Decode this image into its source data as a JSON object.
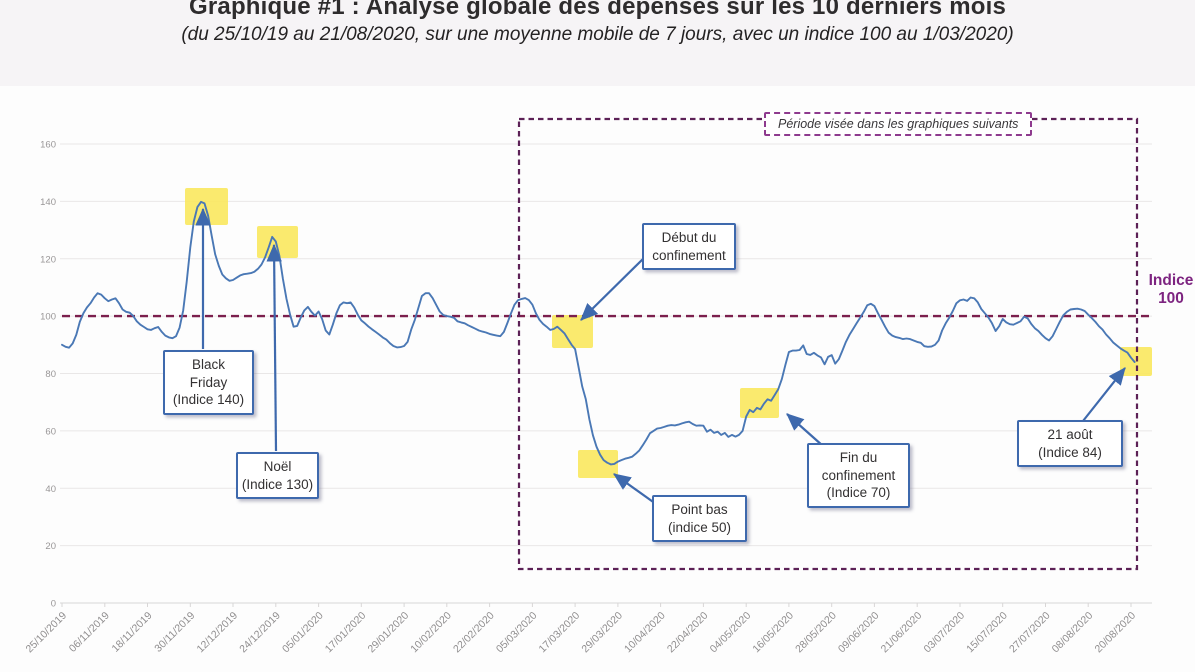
{
  "header": {
    "title": "Graphique #1 : Analyse globale des dépenses sur les 10 derniers mois",
    "subtitle": "(du 25/10/19 au 21/08/2020, sur une moyenne mobile de 7 jours, avec un indice 100 au 1/03/2020)"
  },
  "annotations": {
    "black_friday": [
      "Black",
      "Friday",
      "(Indice 140)"
    ],
    "noel": [
      "Noël",
      "(Indice 130)"
    ],
    "debut_confinement": [
      "Début du",
      "confinement"
    ],
    "point_bas": [
      "Point bas",
      "(indice 50)"
    ],
    "fin_confinement": [
      "Fin du",
      "confinement",
      "(Indice 70)"
    ],
    "aout21": [
      "21 août",
      "(Indice 84)"
    ],
    "indice_100": [
      "Indice",
      "100"
    ],
    "periode": "Période visée dans les graphiques suivants"
  },
  "colors": {
    "line": "#4a78b5",
    "reference_line": "#7b1f4d",
    "period_border": "#5c2156",
    "indice_label": "#7d2480",
    "highlight": "#fae862",
    "annotation_border": "#3e69ad",
    "axis_text": "#999697",
    "gridline": "#e9e7e7",
    "axis_line": "#d8d6d6"
  },
  "chart_data": {
    "type": "line",
    "title": "Graphique #1 : Analyse globale des dépenses sur les 10 derniers mois",
    "subtitle": "(du 25/10/19 au 21/08/2020, sur une moyenne mobile de 7 jours, avec un indice 100 au 1/03/2020)",
    "x_axis": {
      "start_date": "25/10/2019",
      "end_date": "21/08/2020",
      "tick_interval_days": 12,
      "tick_labels": [
        "25/10/2019",
        "06/11/2019",
        "18/11/2019",
        "30/11/2019",
        "12/12/2019",
        "24/12/2019",
        "05/01/2020",
        "17/01/2020",
        "29/01/2020",
        "10/02/2020",
        "22/02/2020",
        "05/03/2020",
        "17/03/2020",
        "29/03/2020",
        "10/04/2020",
        "22/04/2020",
        "04/05/2020",
        "16/05/2020",
        "28/05/2020",
        "09/06/2020",
        "21/06/2020",
        "03/07/2020",
        "15/07/2020",
        "27/07/2020",
        "08/08/2020",
        "20/08/2020"
      ]
    },
    "y_axis": {
      "ylim": [
        0,
        160
      ],
      "ticks": [
        0,
        20,
        40,
        60,
        80,
        100,
        120,
        140,
        160
      ]
    },
    "grid": "horizontal",
    "reference_line": {
      "value": 100,
      "label": "Indice 100"
    },
    "period_box_label": "Période visée dans les graphiques suivants",
    "events": [
      {
        "label": "Black Friday",
        "indice": 140
      },
      {
        "label": "Noël",
        "indice": 130
      },
      {
        "label": "Début du confinement"
      },
      {
        "label": "Point bas",
        "indice": 50
      },
      {
        "label": "Fin du confinement",
        "indice": 70
      },
      {
        "label": "21 août",
        "indice": 84
      }
    ],
    "series": {
      "x_unit": "days_since_25/10/2019",
      "points": [
        [
          0,
          90
        ],
        [
          1,
          89.3
        ],
        [
          2,
          89
        ],
        [
          3,
          90.5
        ],
        [
          4,
          93.5
        ],
        [
          5,
          98
        ],
        [
          6,
          101
        ],
        [
          7,
          103
        ],
        [
          8,
          104.5
        ],
        [
          9,
          106.5
        ],
        [
          10,
          108
        ],
        [
          11,
          107.5
        ],
        [
          12,
          106.2
        ],
        [
          13,
          105.2
        ],
        [
          14,
          105.8
        ],
        [
          15,
          106.2
        ],
        [
          16,
          104.5
        ],
        [
          17,
          102.3
        ],
        [
          18,
          101.5
        ],
        [
          19,
          101.2
        ],
        [
          20,
          100
        ],
        [
          21,
          98.2
        ],
        [
          22,
          97
        ],
        [
          23,
          96.2
        ],
        [
          24,
          95.4
        ],
        [
          25,
          95.2
        ],
        [
          26,
          95.8
        ],
        [
          27,
          96.2
        ],
        [
          28,
          94.5
        ],
        [
          29,
          93.2
        ],
        [
          30,
          92.6
        ],
        [
          31,
          92.3
        ],
        [
          32,
          93
        ],
        [
          33,
          96
        ],
        [
          34,
          102
        ],
        [
          35,
          112
        ],
        [
          36,
          124
        ],
        [
          37,
          133
        ],
        [
          38,
          138
        ],
        [
          39,
          139.8
        ],
        [
          40,
          139.3
        ],
        [
          41,
          135
        ],
        [
          42,
          128
        ],
        [
          43,
          121.5
        ],
        [
          44,
          117.5
        ],
        [
          45,
          114.5
        ],
        [
          46,
          113.2
        ],
        [
          47,
          112.3
        ],
        [
          48,
          112.6
        ],
        [
          49,
          113.4
        ],
        [
          50,
          114.2
        ],
        [
          51,
          114.6
        ],
        [
          52,
          114.8
        ],
        [
          53,
          115
        ],
        [
          54,
          115.5
        ],
        [
          55,
          116.5
        ],
        [
          56,
          118
        ],
        [
          57,
          120.5
        ],
        [
          58,
          124
        ],
        [
          59,
          127.6
        ],
        [
          60,
          126
        ],
        [
          61,
          121
        ],
        [
          62,
          113
        ],
        [
          63,
          106
        ],
        [
          64,
          100.5
        ],
        [
          65,
          96.3
        ],
        [
          66,
          96.6
        ],
        [
          67,
          99.5
        ],
        [
          68,
          102
        ],
        [
          69,
          103.2
        ],
        [
          70,
          101.5
        ],
        [
          71,
          100.2
        ],
        [
          72,
          101.6
        ],
        [
          73,
          99
        ],
        [
          74,
          95
        ],
        [
          75,
          93.6
        ],
        [
          76,
          97
        ],
        [
          77,
          101
        ],
        [
          78,
          103.8
        ],
        [
          79,
          104.8
        ],
        [
          80,
          104.5
        ],
        [
          81,
          104.8
        ],
        [
          82,
          103
        ],
        [
          83,
          100.5
        ],
        [
          84,
          98.5
        ],
        [
          85,
          97.5
        ],
        [
          86,
          96.4
        ],
        [
          87,
          95.4
        ],
        [
          88,
          94.5
        ],
        [
          89,
          93.6
        ],
        [
          90,
          92.6
        ],
        [
          91,
          91.8
        ],
        [
          92,
          90.6
        ],
        [
          93,
          89.6
        ],
        [
          94,
          89.1
        ],
        [
          95,
          89.2
        ],
        [
          96,
          89.6
        ],
        [
          97,
          91
        ],
        [
          98,
          95.3
        ],
        [
          99,
          98.7
        ],
        [
          100,
          102.8
        ],
        [
          101,
          107
        ],
        [
          102,
          108
        ],
        [
          103,
          108
        ],
        [
          104,
          106.3
        ],
        [
          105,
          104
        ],
        [
          106,
          101.6
        ],
        [
          107,
          100.4
        ],
        [
          108,
          100
        ],
        [
          109,
          99.8
        ],
        [
          110,
          99.4
        ],
        [
          111,
          98.2
        ],
        [
          112,
          97.8
        ],
        [
          113,
          97.5
        ],
        [
          114,
          96.8
        ],
        [
          115,
          96.2
        ],
        [
          116,
          95.6
        ],
        [
          117,
          95
        ],
        [
          118,
          94.6
        ],
        [
          119,
          94.3
        ],
        [
          120,
          93.8
        ],
        [
          121,
          93.5
        ],
        [
          122,
          93.2
        ],
        [
          123,
          93
        ],
        [
          124,
          94.5
        ],
        [
          125,
          97.6
        ],
        [
          126,
          101
        ],
        [
          127,
          104
        ],
        [
          128,
          105.6
        ],
        [
          129,
          106
        ],
        [
          130,
          106.3
        ],
        [
          131,
          105.6
        ],
        [
          132,
          104
        ],
        [
          133,
          101
        ],
        [
          134,
          98.7
        ],
        [
          135,
          97.3
        ],
        [
          136,
          96.3
        ],
        [
          137,
          95.2
        ],
        [
          138,
          95.5
        ],
        [
          139,
          96.3
        ],
        [
          140,
          95.2
        ],
        [
          141,
          94
        ],
        [
          142,
          92
        ],
        [
          143,
          90
        ],
        [
          144,
          88.5
        ],
        [
          145,
          82
        ],
        [
          146,
          75.5
        ],
        [
          147,
          71
        ],
        [
          148,
          64
        ],
        [
          149,
          58.5
        ],
        [
          150,
          54.5
        ],
        [
          151,
          51.7
        ],
        [
          152,
          49.8
        ],
        [
          153,
          48.9
        ],
        [
          154,
          48.3
        ],
        [
          155,
          48.5
        ],
        [
          156,
          49.3
        ],
        [
          157,
          49.8
        ],
        [
          158,
          50.3
        ],
        [
          159,
          50.6
        ],
        [
          160,
          51
        ],
        [
          161,
          52
        ],
        [
          162,
          53.2
        ],
        [
          163,
          55
        ],
        [
          164,
          57
        ],
        [
          165,
          59.2
        ],
        [
          166,
          60
        ],
        [
          167,
          60.8
        ],
        [
          168,
          61
        ],
        [
          169,
          61.4
        ],
        [
          170,
          61.8
        ],
        [
          171,
          62
        ],
        [
          172,
          61.9
        ],
        [
          173,
          62.2
        ],
        [
          174,
          62.6
        ],
        [
          175,
          63
        ],
        [
          176,
          63.2
        ],
        [
          177,
          62.4
        ],
        [
          178,
          61.8
        ],
        [
          179,
          61.9
        ],
        [
          180,
          61.8
        ],
        [
          181,
          59.7
        ],
        [
          182,
          60.4
        ],
        [
          183,
          59.3
        ],
        [
          184,
          59.7
        ],
        [
          185,
          58.6
        ],
        [
          186,
          59.3
        ],
        [
          187,
          57.9
        ],
        [
          188,
          58.6
        ],
        [
          189,
          58
        ],
        [
          190,
          58.6
        ],
        [
          191,
          60
        ],
        [
          192,
          65
        ],
        [
          193,
          67.3
        ],
        [
          194,
          66.5
        ],
        [
          195,
          68
        ],
        [
          196,
          67.5
        ],
        [
          197,
          69.5
        ],
        [
          198,
          71
        ],
        [
          199,
          70.5
        ],
        [
          200,
          72.5
        ],
        [
          201,
          74.5
        ],
        [
          202,
          78
        ],
        [
          203,
          83
        ],
        [
          204,
          87.5
        ],
        [
          205,
          88
        ],
        [
          206,
          88
        ],
        [
          207,
          88.2
        ],
        [
          208,
          89.8
        ],
        [
          209,
          86.8
        ],
        [
          210,
          86.5
        ],
        [
          211,
          87.2
        ],
        [
          212,
          86.3
        ],
        [
          213,
          85.6
        ],
        [
          214,
          83.2
        ],
        [
          215,
          85.8
        ],
        [
          216,
          86.4
        ],
        [
          217,
          83.4
        ],
        [
          218,
          85
        ],
        [
          219,
          88
        ],
        [
          220,
          91
        ],
        [
          221,
          93.5
        ],
        [
          222,
          95.5
        ],
        [
          223,
          97.5
        ],
        [
          224,
          99.5
        ],
        [
          225,
          101.5
        ],
        [
          226,
          103.8
        ],
        [
          227,
          104.3
        ],
        [
          228,
          103.5
        ],
        [
          229,
          101
        ],
        [
          230,
          98.7
        ],
        [
          231,
          96.3
        ],
        [
          232,
          94.2
        ],
        [
          233,
          93.2
        ],
        [
          234,
          92.7
        ],
        [
          235,
          92.4
        ],
        [
          236,
          92
        ],
        [
          237,
          92.2
        ],
        [
          238,
          92
        ],
        [
          239,
          91.5
        ],
        [
          240,
          91
        ],
        [
          241,
          90.7
        ],
        [
          242,
          89.5
        ],
        [
          243,
          89.3
        ],
        [
          244,
          89.4
        ],
        [
          245,
          90
        ],
        [
          246,
          91.5
        ],
        [
          247,
          95
        ],
        [
          248,
          97.5
        ],
        [
          249,
          99.5
        ],
        [
          250,
          101.8
        ],
        [
          251,
          104.5
        ],
        [
          252,
          105.5
        ],
        [
          253,
          105.8
        ],
        [
          254,
          105.3
        ],
        [
          255,
          106.5
        ],
        [
          256,
          106.2
        ],
        [
          257,
          104.8
        ],
        [
          258,
          102.5
        ],
        [
          259,
          101
        ],
        [
          260,
          99.5
        ],
        [
          261,
          97.5
        ],
        [
          262,
          94.8
        ],
        [
          263,
          96.5
        ],
        [
          264,
          99
        ],
        [
          265,
          97.8
        ],
        [
          266,
          97.2
        ],
        [
          267,
          97
        ],
        [
          268,
          97.6
        ],
        [
          269,
          98.2
        ],
        [
          270,
          99.8
        ],
        [
          271,
          99.2
        ],
        [
          272,
          97.3
        ],
        [
          273,
          95.8
        ],
        [
          274,
          94.8
        ],
        [
          275,
          93.5
        ],
        [
          276,
          92.3
        ],
        [
          277,
          91.5
        ],
        [
          278,
          93
        ],
        [
          279,
          95.5
        ],
        [
          280,
          98
        ],
        [
          281,
          100.3
        ],
        [
          282,
          101.5
        ],
        [
          283,
          102.3
        ],
        [
          284,
          102.5
        ],
        [
          285,
          102.6
        ],
        [
          286,
          102.3
        ],
        [
          287,
          101.8
        ],
        [
          288,
          100.5
        ],
        [
          289,
          99.3
        ],
        [
          290,
          98
        ],
        [
          291,
          96.5
        ],
        [
          292,
          95.3
        ],
        [
          293,
          93.6
        ],
        [
          294,
          92.3
        ],
        [
          295,
          90.8
        ],
        [
          296,
          89.8
        ],
        [
          297,
          88.8
        ],
        [
          298,
          88
        ],
        [
          299,
          87.3
        ],
        [
          300,
          85.5
        ],
        [
          301,
          84
        ]
      ]
    }
  }
}
